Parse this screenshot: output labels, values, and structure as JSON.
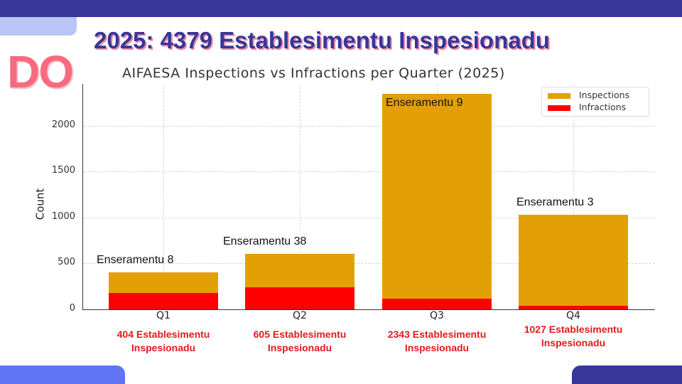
{
  "slide": {
    "title": "2025: 4379 Establesimentu Inspesionadu",
    "corner_text": "DO",
    "colors": {
      "primary": "#373699",
      "accent_light": "#b9c4f7",
      "accent_blue": "#6074f4",
      "pink": "#f76b80",
      "note_red": "#e31a1c"
    }
  },
  "notes": [
    "404 Establesimentu Inspesionadu",
    "605 Establesimentu Inspesionadu",
    "2343 Establesimentu Inspesionadu",
    "1027 Establesimentu Inspesionadu"
  ],
  "notes_split": [
    {
      "line1": "404 Establesimentu",
      "line2": "Inspesionadu"
    },
    {
      "line1": "605 Establesimentu",
      "line2": "Inspesionadu"
    },
    {
      "line1": "2343 Establesimentu",
      "line2": "Inspesionadu"
    },
    {
      "line1": "1027 Establesimentu",
      "line2": "Inspesionadu"
    }
  ],
  "chart_data": {
    "type": "bar",
    "stacked": false,
    "overlay": true,
    "title": "AIFAESA Inspections vs Infractions per Quarter (2025)",
    "xlabel": "",
    "ylabel": "Count",
    "categories": [
      "Q1",
      "Q2",
      "Q3",
      "Q4"
    ],
    "series": [
      {
        "name": "Inspections",
        "color": "#e3a004",
        "values": [
          404,
          605,
          2343,
          1027
        ]
      },
      {
        "name": "Infractions",
        "color": "#ff0000",
        "values": [
          178,
          237,
          116,
          39
        ]
      }
    ],
    "annotations": [
      "Enseramentu 8",
      "Enseramentu 38",
      "Enseramentu 9",
      "Enseramentu 3"
    ],
    "yticks": [
      "0",
      "500",
      "1000",
      "1500",
      "2000"
    ],
    "ylim": [
      0,
      2460
    ],
    "grid": true,
    "legend_position": "upper right",
    "legend": [
      "Inspections",
      "Infractions"
    ]
  }
}
